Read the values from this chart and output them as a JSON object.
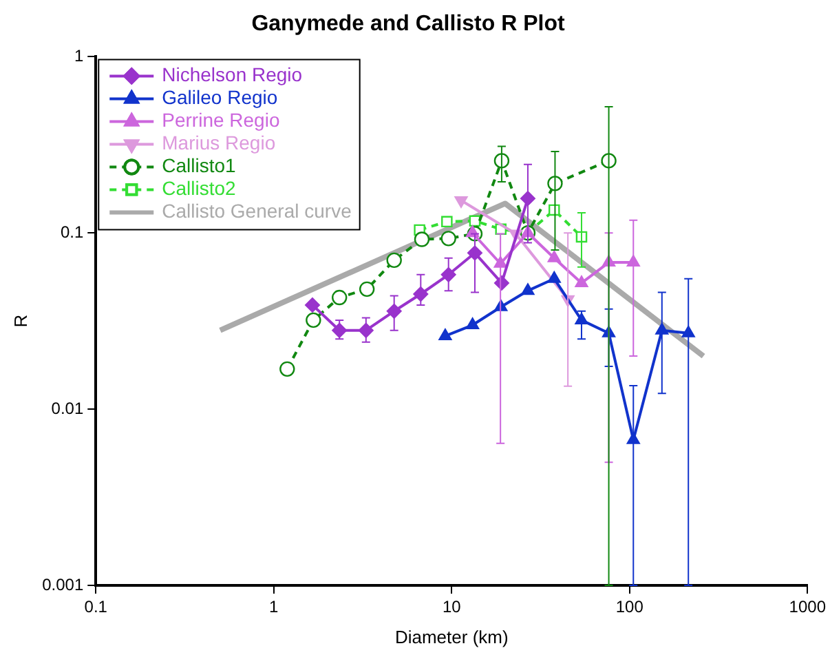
{
  "chart_data": {
    "type": "line",
    "title": "Ganymede and Callisto R Plot",
    "xlabel": "Diameter (km)",
    "ylabel": "R",
    "log": "xy",
    "xlim": [
      0.1,
      1000
    ],
    "ylim": [
      0.001,
      1
    ],
    "xticks": [
      0.1,
      1,
      10,
      100,
      1000
    ],
    "yticks": [
      0.001,
      0.01,
      0.1,
      1
    ],
    "legend": "top left",
    "series": [
      {
        "name": "Nichelson Regio",
        "color": "#9933cc",
        "marker": "diamond",
        "line_style": "solid",
        "x": [
          1.65,
          2.34,
          3.3,
          4.75,
          6.7,
          9.6,
          13.5,
          19.1,
          26.8
        ],
        "values": [
          0.039,
          0.028,
          0.028,
          0.036,
          0.045,
          0.058,
          0.077,
          0.052,
          0.157
        ],
        "errors": [
          null,
          [
            0.025,
            0.032
          ],
          [
            0.024,
            0.033
          ],
          [
            0.028,
            0.044
          ],
          [
            0.039,
            0.058
          ],
          [
            0.047,
            0.072
          ],
          [
            0.046,
            0.099
          ],
          null,
          [
            0.088,
            0.245
          ]
        ]
      },
      {
        "name": "Galileo Regio",
        "color": "#1133cc",
        "marker": "triangle",
        "line_style": "solid",
        "x": [
          9.2,
          13.1,
          18.9,
          26.8,
          37.7,
          53.7,
          76.4,
          105,
          152,
          214
        ],
        "values": [
          0.026,
          0.03,
          0.038,
          0.047,
          0.055,
          0.032,
          0.027,
          0.0067,
          0.028,
          0.027
        ],
        "errors": [
          null,
          null,
          null,
          null,
          null,
          [
            0.025,
            0.036
          ],
          [
            0.0175,
            0.037
          ],
          [
            0.001,
            0.0136
          ],
          [
            0.0123,
            0.046
          ],
          [
            0.001,
            0.055
          ]
        ]
      },
      {
        "name": "Perrine Regio",
        "color": "#cc66dd",
        "marker": "triangle",
        "line_style": "solid",
        "x": [
          13.1,
          18.8,
          26.8,
          37.7,
          53.7,
          76.4,
          105
        ],
        "values": [
          0.1,
          0.067,
          0.1,
          0.072,
          0.052,
          0.068,
          0.068
        ],
        "errors": [
          null,
          [
            0.0064,
            0.099
          ],
          null,
          null,
          null,
          [
            0.005,
            0.1
          ],
          [
            0.02,
            0.118
          ]
        ]
      },
      {
        "name": "Marius Regio",
        "color": "#dd99dd",
        "marker": "triangle_down",
        "line_style": "solid",
        "x": [
          11.3,
          22.9,
          45
        ],
        "values": [
          0.153,
          0.099,
          0.042
        ],
        "errors": [
          null,
          null,
          [
            0.0135,
            0.1
          ]
        ]
      },
      {
        "name": "Callisto1",
        "color": "#118811",
        "marker": "circle",
        "line_style": "dashed",
        "x": [
          1.19,
          1.67,
          2.34,
          3.34,
          4.75,
          6.8,
          9.6,
          13.5,
          19.1,
          26.8,
          38.1,
          76.4
        ],
        "values": [
          0.0169,
          0.032,
          0.043,
          0.048,
          0.07,
          0.092,
          0.093,
          0.099,
          0.257,
          0.1,
          0.191,
          0.257
        ],
        "errors": [
          null,
          null,
          null,
          null,
          null,
          null,
          null,
          null,
          [
            0.195,
            0.31
          ],
          null,
          [
            0.08,
            0.29
          ],
          [
            0.001,
            0.52
          ]
        ]
      },
      {
        "name": "Callisto2",
        "color": "#33dd33",
        "marker": "square",
        "line_style": "dashed",
        "x": [
          6.6,
          9.4,
          13.5,
          18.9,
          26.8,
          37.7,
          53.7
        ],
        "values": [
          0.104,
          0.116,
          0.117,
          0.105,
          0.1,
          0.135,
          0.095
        ],
        "errors": [
          null,
          null,
          null,
          null,
          null,
          null,
          [
            0.064,
            0.13
          ]
        ]
      },
      {
        "name": "Callisto General curve",
        "color": "#aaaaaa",
        "marker": "none",
        "line_style": "solid",
        "x": [
          0.5,
          20,
          260
        ],
        "values": [
          0.028,
          0.147,
          0.02
        ]
      }
    ]
  }
}
